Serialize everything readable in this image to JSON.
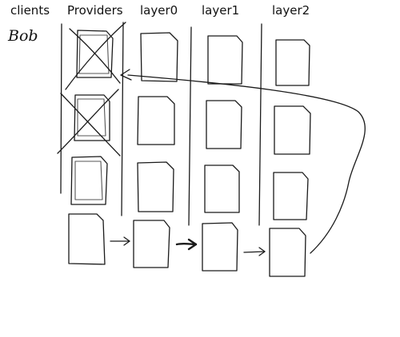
{
  "headers": {
    "clients": "clients",
    "providers": "Providers",
    "layer0": "layer0",
    "layer1": "layer1",
    "layer2": "layer2"
  },
  "client_name": "Bob",
  "diagram": {
    "columns": [
      "Providers",
      "layer0",
      "layer1",
      "layer2"
    ],
    "cards_per_column": 4,
    "crossed_out": [
      {
        "column": "Providers",
        "row": 1
      },
      {
        "column": "Providers",
        "row": 2
      }
    ],
    "flow": [
      "Providers",
      "layer0",
      "layer1",
      "layer2",
      "Providers"
    ],
    "stroke_color": "#1a1a1a"
  }
}
